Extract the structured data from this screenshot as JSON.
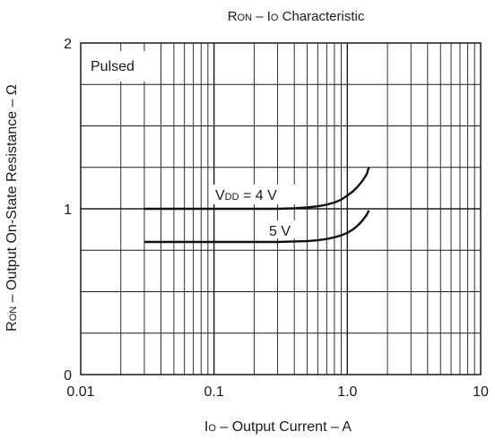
{
  "chart_data": {
    "type": "line",
    "title": {
      "main": "R",
      "sub1": "ON",
      "mid": " – I",
      "sub2": "O",
      "rest": " Characteristic"
    },
    "xlabel": {
      "main": "I",
      "sub": "O",
      "rest": " – Output Current – A"
    },
    "ylabel": {
      "main": "R",
      "sub": "ON",
      "rest": " – Output On-State Resistance – Ω"
    },
    "x_scale": "log",
    "xlim": [
      0.01,
      10
    ],
    "ylim": [
      0,
      2
    ],
    "x_ticks": [
      {
        "value": 0.01,
        "label": "0.01"
      },
      {
        "value": 0.1,
        "label": "0.1"
      },
      {
        "value": 1,
        "label": "1.0"
      },
      {
        "value": 10,
        "label": "10"
      }
    ],
    "y_ticks": [
      {
        "value": 0,
        "label": "0"
      },
      {
        "value": 1,
        "label": "1"
      },
      {
        "value": 2,
        "label": "2"
      }
    ],
    "y_minor_step": 0.25,
    "grid": true,
    "annotation": "Pulsed",
    "series": [
      {
        "name": "VDD = 4 V",
        "label": {
          "main": "V",
          "sub": "DD",
          "rest": " = 4 V"
        },
        "x": [
          0.03,
          0.1,
          0.2,
          0.3,
          0.4,
          0.5,
          0.6,
          0.7,
          0.8,
          0.9,
          1.0,
          1.1,
          1.2,
          1.3,
          1.4,
          1.45
        ],
        "y": [
          1.0,
          1.0,
          1.0,
          1.0,
          1.003,
          1.008,
          1.015,
          1.025,
          1.038,
          1.055,
          1.08,
          1.105,
          1.135,
          1.17,
          1.21,
          1.25
        ]
      },
      {
        "name": "5 V",
        "label": {
          "main": "5 V",
          "sub": "",
          "rest": ""
        },
        "x": [
          0.03,
          0.1,
          0.2,
          0.3,
          0.5,
          0.6,
          0.7,
          0.8,
          0.9,
          1.0,
          1.1,
          1.2,
          1.3,
          1.4,
          1.45
        ],
        "y": [
          0.8,
          0.8,
          0.8,
          0.8,
          0.805,
          0.81,
          0.818,
          0.828,
          0.84,
          0.855,
          0.875,
          0.9,
          0.93,
          0.965,
          0.99
        ]
      }
    ]
  }
}
